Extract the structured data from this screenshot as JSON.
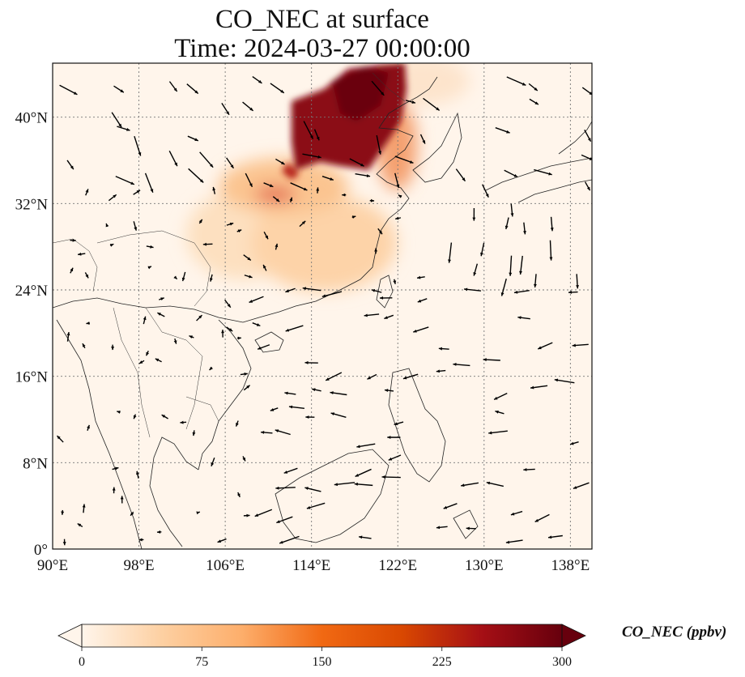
{
  "title": "CO_NEC at surface",
  "subtitle": "Time: 2024-03-27 00:00:00",
  "map": {
    "lon_range": [
      90,
      140
    ],
    "lat_range": [
      0,
      45
    ],
    "lon_ticks": [
      90,
      98,
      106,
      114,
      122,
      130,
      138
    ],
    "lat_ticks": [
      0,
      8,
      16,
      24,
      32,
      40
    ],
    "lon_labels": [
      "90°E",
      "98°E",
      "106°E",
      "114°E",
      "122°E",
      "130°E",
      "138°E"
    ],
    "lat_labels": [
      "0°",
      "8°N",
      "16°N",
      "24°N",
      "32°N",
      "40°N"
    ],
    "gridlines": true
  },
  "colorbar": {
    "label": "CO_NEC (ppbv)",
    "ticks": [
      "0",
      "75",
      "150",
      "225",
      "300"
    ],
    "min": 0,
    "max": 300,
    "extend": "both",
    "colors": [
      "#fff5eb",
      "#fdd0a2",
      "#fdae6b",
      "#f16913",
      "#d94801",
      "#a50f15",
      "#67000d"
    ]
  },
  "plume_regions": [
    {
      "lon": 117,
      "lat": 40,
      "value": 300
    },
    {
      "lon": 119.5,
      "lat": 41.5,
      "value": 300
    },
    {
      "lon": 116,
      "lat": 37.5,
      "value": 290
    },
    {
      "lon": 121.5,
      "lat": 36.5,
      "value": 200
    },
    {
      "lon": 111,
      "lat": 33,
      "value": 160
    },
    {
      "lon": 108,
      "lat": 28,
      "value": 60
    },
    {
      "lon": 116,
      "lat": 28,
      "value": 55
    }
  ]
}
